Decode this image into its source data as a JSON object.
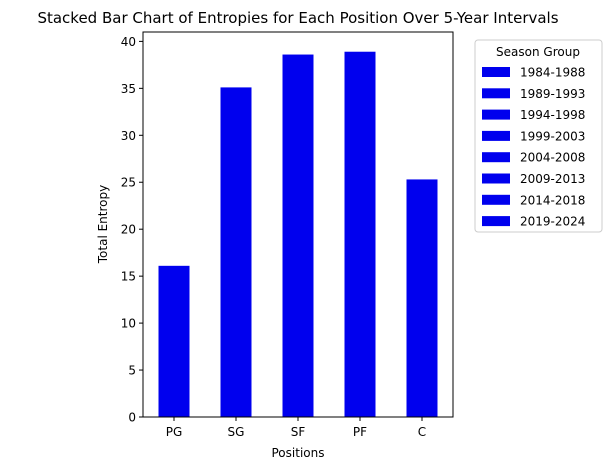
{
  "chart_data": {
    "type": "bar",
    "stacked": true,
    "title": "Stacked Bar Chart of Entropies for Each Position Over 5-Year Intervals",
    "xlabel": "Positions",
    "ylabel": "Total Entropy",
    "categories": [
      "PG",
      "SG",
      "SF",
      "PF",
      "C"
    ],
    "totals": [
      16.1,
      35.1,
      38.6,
      38.9,
      25.3
    ],
    "ylim": [
      0,
      41
    ],
    "yticks": [
      0,
      5,
      10,
      15,
      20,
      25,
      30,
      35,
      40
    ],
    "bar_color": "#0000ee",
    "grid": false,
    "legend": {
      "title": "Season Group",
      "placement": "outside-right",
      "entries": [
        "1984-1988",
        "1989-1993",
        "1994-1998",
        "1999-2003",
        "2004-2008",
        "2009-2013",
        "2014-2018",
        "2019-2024"
      ]
    }
  }
}
